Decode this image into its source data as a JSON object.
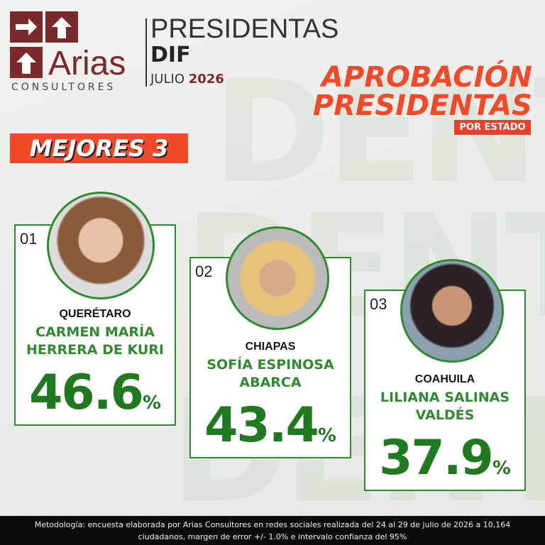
{
  "header": {
    "logo_name": "Arias",
    "logo_sub": "CONSULTORES",
    "title": "PRESIDENTAS",
    "title_bold": "DIF",
    "month": "JULIO",
    "year": "2026"
  },
  "headline": {
    "line1": "APROBACIÓN",
    "line2": "PRESIDENTAS",
    "tag": "POR ESTADO"
  },
  "banner": "MEJORES 3",
  "cards": [
    {
      "rank": "01",
      "state": "QUERÉTARO",
      "name": [
        "CARMEN MARÍA",
        "HERRERA DE KURI"
      ],
      "value": 46.6,
      "unit": "%"
    },
    {
      "rank": "02",
      "state": "CHIAPAS",
      "name": [
        "SOFÍA ESPINOSA",
        "ABARCA"
      ],
      "value": 43.4,
      "unit": "%"
    },
    {
      "rank": "03",
      "state": "COAHUILA",
      "name": [
        "LILIANA SALINAS",
        "VALDÉS"
      ],
      "value": 37.9,
      "unit": "%"
    }
  ],
  "footer": [
    "Metodología: encuesta elaborada por Arias Consultores en redes sociales realizada del 24 al 29 de julio de 2026 a 10,164",
    "ciudadanos, margen de error +/- 1.0% e intervalo confianza del 95%"
  ]
}
